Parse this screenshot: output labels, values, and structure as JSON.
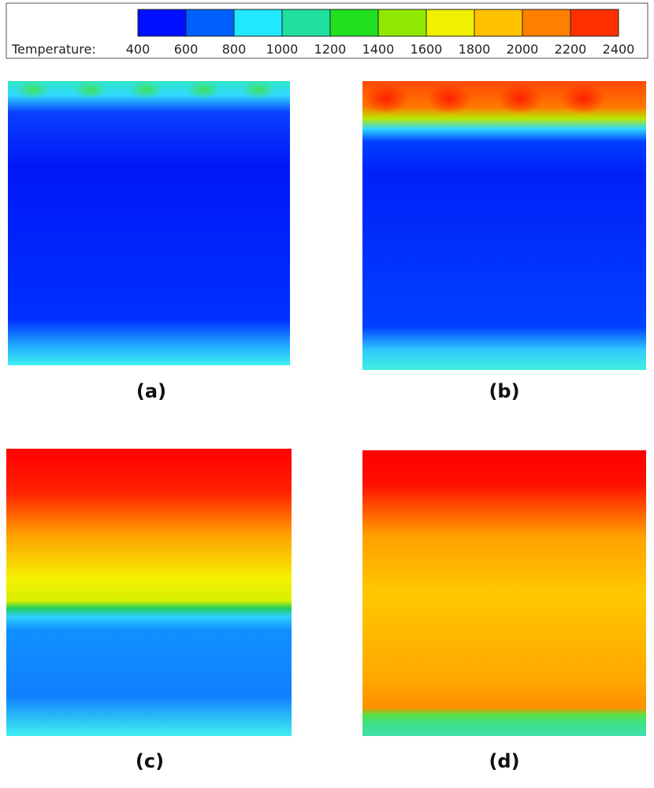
{
  "colorbar": {
    "label": "Temperature:",
    "ticks": [
      400,
      600,
      800,
      1000,
      1200,
      1400,
      1600,
      1800,
      2000,
      2200,
      2400
    ]
  },
  "panels": [
    {
      "label": "(a)"
    },
    {
      "label": "(b)"
    },
    {
      "label": "(c)"
    },
    {
      "label": "(d)"
    }
  ]
}
